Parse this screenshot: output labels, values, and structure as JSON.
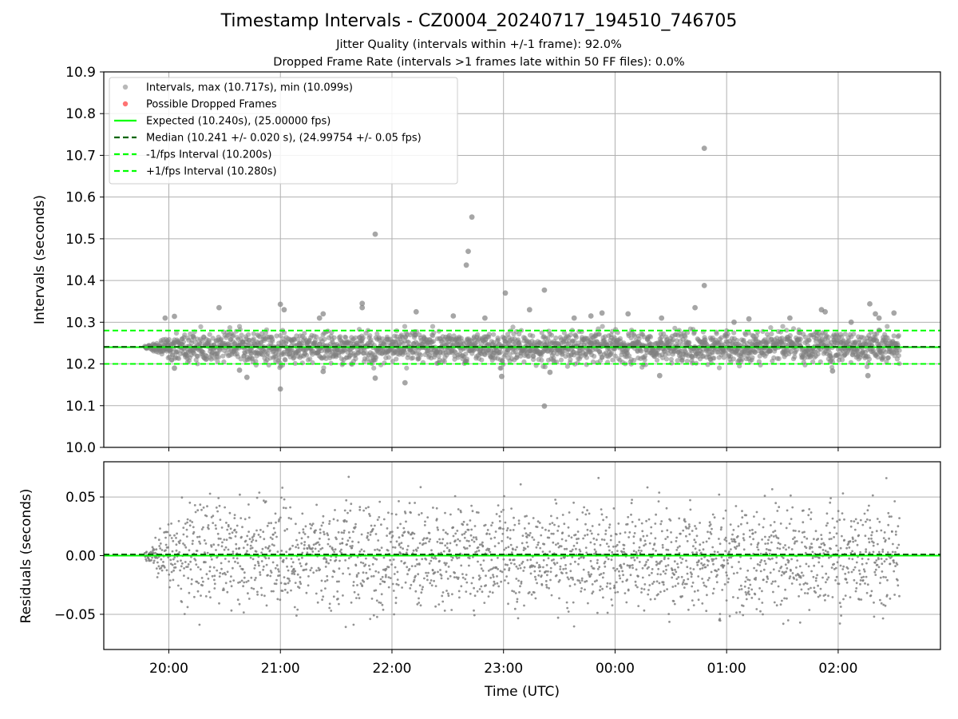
{
  "chart_data": [
    {
      "type": "scatter",
      "title": "Timestamp Intervals - CZ0004_20240717_194510_746705",
      "subtitle_lines": [
        "Jitter Quality (intervals within +/-1 frame): 92.0%",
        "Dropped Frame Rate (intervals >1 frames late within 50 FF files): 0.0%"
      ],
      "xlabel": "",
      "ylabel": "Intervals (seconds)",
      "ylim": [
        10.0,
        10.9
      ],
      "yticks": [
        "10.0",
        "10.1",
        "10.2",
        "10.3",
        "10.4",
        "10.5",
        "10.6",
        "10.7",
        "10.8",
        "10.9"
      ],
      "x_time_axis": {
        "start": "19:25",
        "end": "02:55",
        "ticks": [
          "20:00",
          "21:00",
          "22:00",
          "23:00",
          "00:00",
          "01:00",
          "02:00"
        ],
        "data_start": "19:47",
        "data_end": "02:33"
      },
      "grid": true,
      "legend_position": "upper left",
      "legend": [
        {
          "label": "Intervals, max (10.717s), min (10.099s)",
          "kind": "marker",
          "color": "#808080"
        },
        {
          "label": "Possible Dropped Frames",
          "kind": "marker",
          "color": "#ff0000"
        },
        {
          "label": "Expected (10.240s), (25.00000 fps)",
          "kind": "solid",
          "color": "#00ff00"
        },
        {
          "label": "Median (10.241 +/- 0.020 s), (24.99754 +/- 0.05 fps)",
          "kind": "dashed",
          "color": "#006400"
        },
        {
          "label": "-1/fps Interval (10.200s)",
          "kind": "dashed",
          "color": "#00ff00"
        },
        {
          "label": "+1/fps Interval (10.280s)",
          "kind": "dashed",
          "color": "#00ff00"
        }
      ],
      "series": [
        {
          "name": "Intervals, max (10.717s), min (10.099s)",
          "color": "#808080",
          "typical_min": 10.19,
          "typical_max": 10.29,
          "count": 2400,
          "outliers": [
            {
              "x": "23:22",
              "y": 10.099
            },
            {
              "x": "21:00",
              "y": 10.14
            },
            {
              "x": "22:07",
              "y": 10.155
            },
            {
              "x": "21:51",
              "y": 10.166
            },
            {
              "x": "20:42",
              "y": 10.168
            },
            {
              "x": "22:59",
              "y": 10.17
            },
            {
              "x": "00:24",
              "y": 10.172
            },
            {
              "x": "02:16",
              "y": 10.172
            },
            {
              "x": "23:25",
              "y": 10.18
            },
            {
              "x": "21:23",
              "y": 10.182
            },
            {
              "x": "01:57",
              "y": 10.183
            },
            {
              "x": "20:38",
              "y": 10.185
            },
            {
              "x": "20:03",
              "y": 10.19
            },
            {
              "x": "19:58",
              "y": 10.31
            },
            {
              "x": "20:03",
              "y": 10.314
            },
            {
              "x": "20:27",
              "y": 10.335
            },
            {
              "x": "21:00",
              "y": 10.343
            },
            {
              "x": "21:02",
              "y": 10.33
            },
            {
              "x": "21:21",
              "y": 10.31
            },
            {
              "x": "21:23",
              "y": 10.32
            },
            {
              "x": "21:44",
              "y": 10.345
            },
            {
              "x": "21:44",
              "y": 10.335
            },
            {
              "x": "21:51",
              "y": 10.511
            },
            {
              "x": "22:13",
              "y": 10.325
            },
            {
              "x": "22:33",
              "y": 10.315
            },
            {
              "x": "22:40",
              "y": 10.437
            },
            {
              "x": "22:41",
              "y": 10.47
            },
            {
              "x": "22:43",
              "y": 10.552
            },
            {
              "x": "22:50",
              "y": 10.31
            },
            {
              "x": "23:01",
              "y": 10.37
            },
            {
              "x": "23:14",
              "y": 10.33
            },
            {
              "x": "23:22",
              "y": 10.377
            },
            {
              "x": "23:38",
              "y": 10.31
            },
            {
              "x": "23:47",
              "y": 10.315
            },
            {
              "x": "23:53",
              "y": 10.322
            },
            {
              "x": "00:07",
              "y": 10.32
            },
            {
              "x": "00:25",
              "y": 10.31
            },
            {
              "x": "00:43",
              "y": 10.335
            },
            {
              "x": "00:48",
              "y": 10.388
            },
            {
              "x": "00:48",
              "y": 10.717
            },
            {
              "x": "01:04",
              "y": 10.3
            },
            {
              "x": "01:12",
              "y": 10.308
            },
            {
              "x": "01:34",
              "y": 10.31
            },
            {
              "x": "01:51",
              "y": 10.33
            },
            {
              "x": "01:53",
              "y": 10.325
            },
            {
              "x": "02:07",
              "y": 10.3
            },
            {
              "x": "02:17",
              "y": 10.344
            },
            {
              "x": "02:20",
              "y": 10.32
            },
            {
              "x": "02:22",
              "y": 10.31
            },
            {
              "x": "02:30",
              "y": 10.322
            }
          ]
        },
        {
          "name": "Possible Dropped Frames",
          "color": "#ff0000",
          "points": []
        }
      ],
      "reference_lines": [
        {
          "name": "Expected (10.240s), (25.00000 fps)",
          "y": 10.24,
          "color": "#00ff00",
          "style": "solid"
        },
        {
          "name": "Median (10.241 +/- 0.020 s), (24.99754 +/- 0.05 fps)",
          "y": 10.241,
          "color": "#006400",
          "style": "dashed"
        },
        {
          "name": "-1/fps Interval (10.200s)",
          "y": 10.2,
          "color": "#00ff00",
          "style": "dashed"
        },
        {
          "name": "+1/fps Interval (10.280s)",
          "y": 10.28,
          "color": "#00ff00",
          "style": "dashed"
        }
      ]
    },
    {
      "type": "scatter",
      "title": "",
      "xlabel": "Time (UTC)",
      "ylabel": "Residuals (seconds)",
      "ylim": [
        -0.08,
        0.08
      ],
      "yticks": [
        "−0.05",
        "0.00",
        "0.05"
      ],
      "ytick_values": [
        -0.05,
        0.0,
        0.05
      ],
      "grid": true,
      "series": [
        {
          "name": "",
          "color": "#808080",
          "typical_min": -0.075,
          "typical_max": 0.08,
          "count": 2400
        }
      ],
      "reference_lines": [
        {
          "y": 0.0,
          "color": "#00ff00",
          "style": "solid"
        },
        {
          "y": 0.001,
          "color": "#006400",
          "style": "dashed"
        }
      ]
    }
  ]
}
